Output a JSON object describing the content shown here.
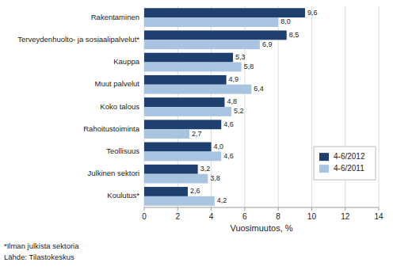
{
  "chart_data": {
    "type": "bar",
    "orientation": "horizontal",
    "categories": [
      "Rakentaminen",
      "Terveydenhuolto- ja sosiaalipalvelut*",
      "Kauppa",
      "Muut palvelut",
      "Koko talous",
      "Rahoitustoiminta",
      "Teollisuus",
      "Julkinen sektori",
      "Koulutus*"
    ],
    "series": [
      {
        "name": "4-6/2012",
        "color": "#1F3F6E",
        "values": [
          9.6,
          8.5,
          5.3,
          4.9,
          4.8,
          4.6,
          4.0,
          3.2,
          2.6
        ],
        "value_labels": [
          "9,6",
          "8,5",
          "5,3",
          "4,9",
          "4,8",
          "4,6",
          "4,0",
          "3,2",
          "2,6"
        ]
      },
      {
        "name": "4-6/2011",
        "color": "#A8C4E0",
        "values": [
          8.0,
          6.9,
          5.8,
          6.4,
          5.2,
          2.7,
          4.6,
          3.8,
          4.2
        ],
        "value_labels": [
          "8,0",
          "6,9",
          "5,8",
          "6,4",
          "5,2",
          "2,7",
          "4,6",
          "3,8",
          "4,2"
        ]
      }
    ],
    "xlabel": "Vuosimuutos, %",
    "xlim": [
      0,
      14
    ],
    "xticks": [
      0,
      2,
      4,
      6,
      8,
      10,
      12,
      14
    ],
    "grid": true,
    "legend": "lower right",
    "data_labels": true,
    "annotations": [
      "*Ilman julkista sektoria",
      "Lähde: Tilastokeskus"
    ]
  }
}
